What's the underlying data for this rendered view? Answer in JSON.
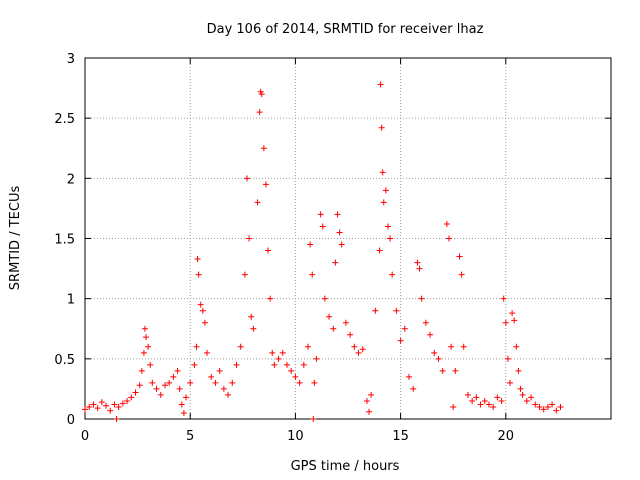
{
  "chart_data": {
    "type": "scatter",
    "title": "Day 106 of 2014, SRMTID for receiver lhaz",
    "xlabel": "GPS time / hours",
    "ylabel": "SRMTID / TECUs",
    "xlim": [
      0,
      25
    ],
    "ylim": [
      0,
      3
    ],
    "xticks": [
      0,
      5,
      10,
      15,
      20
    ],
    "xtick_labels": [
      "0",
      "5",
      "10",
      "15",
      "20"
    ],
    "yticks": [
      0,
      0.5,
      1,
      1.5,
      2,
      2.5,
      3
    ],
    "ytick_labels": [
      "0",
      "0.5",
      "1",
      "1.5",
      "2",
      "2.5",
      "3"
    ],
    "grid": true,
    "marker": "+",
    "color": "#ff0000",
    "series": [
      {
        "name": "SRMTID",
        "points": [
          [
            0.0,
            0.08
          ],
          [
            0.2,
            0.1
          ],
          [
            0.4,
            0.12
          ],
          [
            0.6,
            0.09
          ],
          [
            0.8,
            0.14
          ],
          [
            1.0,
            0.11
          ],
          [
            1.2,
            0.07
          ],
          [
            1.4,
            0.12
          ],
          [
            1.5,
            0.0
          ],
          [
            1.6,
            0.1
          ],
          [
            1.8,
            0.13
          ],
          [
            2.0,
            0.15
          ],
          [
            2.2,
            0.18
          ],
          [
            2.4,
            0.22
          ],
          [
            2.6,
            0.28
          ],
          [
            2.7,
            0.4
          ],
          [
            2.8,
            0.55
          ],
          [
            2.85,
            0.75
          ],
          [
            2.9,
            0.68
          ],
          [
            3.0,
            0.6
          ],
          [
            3.1,
            0.45
          ],
          [
            3.2,
            0.3
          ],
          [
            3.4,
            0.25
          ],
          [
            3.6,
            0.2
          ],
          [
            3.8,
            0.28
          ],
          [
            4.0,
            0.3
          ],
          [
            4.2,
            0.35
          ],
          [
            4.4,
            0.4
          ],
          [
            4.5,
            0.25
          ],
          [
            4.6,
            0.12
          ],
          [
            4.7,
            0.05
          ],
          [
            4.8,
            0.18
          ],
          [
            5.0,
            0.3
          ],
          [
            5.2,
            0.45
          ],
          [
            5.3,
            0.6
          ],
          [
            5.35,
            1.33
          ],
          [
            5.4,
            1.2
          ],
          [
            5.5,
            0.95
          ],
          [
            5.6,
            0.9
          ],
          [
            5.7,
            0.8
          ],
          [
            5.8,
            0.55
          ],
          [
            6.0,
            0.35
          ],
          [
            6.2,
            0.3
          ],
          [
            6.4,
            0.4
          ],
          [
            6.6,
            0.25
          ],
          [
            6.8,
            0.2
          ],
          [
            7.0,
            0.3
          ],
          [
            7.2,
            0.45
          ],
          [
            7.4,
            0.6
          ],
          [
            7.6,
            1.2
          ],
          [
            7.7,
            2.0
          ],
          [
            7.8,
            1.5
          ],
          [
            7.9,
            0.85
          ],
          [
            8.0,
            0.75
          ],
          [
            8.2,
            1.8
          ],
          [
            8.3,
            2.55
          ],
          [
            8.35,
            2.72
          ],
          [
            8.4,
            2.7
          ],
          [
            8.5,
            2.25
          ],
          [
            8.6,
            1.95
          ],
          [
            8.7,
            1.4
          ],
          [
            8.8,
            1.0
          ],
          [
            8.9,
            0.55
          ],
          [
            9.0,
            0.45
          ],
          [
            9.2,
            0.5
          ],
          [
            9.4,
            0.55
          ],
          [
            9.6,
            0.45
          ],
          [
            9.8,
            0.4
          ],
          [
            10.0,
            0.35
          ],
          [
            10.2,
            0.3
          ],
          [
            10.4,
            0.45
          ],
          [
            10.6,
            0.6
          ],
          [
            10.7,
            1.45
          ],
          [
            10.8,
            1.2
          ],
          [
            10.85,
            0.0
          ],
          [
            10.9,
            0.3
          ],
          [
            11.0,
            0.5
          ],
          [
            11.2,
            1.7
          ],
          [
            11.3,
            1.6
          ],
          [
            11.4,
            1.0
          ],
          [
            11.6,
            0.85
          ],
          [
            11.8,
            0.75
          ],
          [
            11.9,
            1.3
          ],
          [
            12.0,
            1.7
          ],
          [
            12.1,
            1.55
          ],
          [
            12.2,
            1.45
          ],
          [
            12.4,
            0.8
          ],
          [
            12.6,
            0.7
          ],
          [
            12.8,
            0.6
          ],
          [
            13.0,
            0.55
          ],
          [
            13.2,
            0.58
          ],
          [
            13.4,
            0.15
          ],
          [
            13.5,
            0.06
          ],
          [
            13.6,
            0.2
          ],
          [
            13.8,
            0.9
          ],
          [
            14.0,
            1.4
          ],
          [
            14.05,
            2.78
          ],
          [
            14.1,
            2.42
          ],
          [
            14.15,
            2.05
          ],
          [
            14.2,
            1.8
          ],
          [
            14.3,
            1.9
          ],
          [
            14.4,
            1.6
          ],
          [
            14.5,
            1.5
          ],
          [
            14.6,
            1.2
          ],
          [
            14.8,
            0.9
          ],
          [
            15.0,
            0.65
          ],
          [
            15.2,
            0.75
          ],
          [
            15.4,
            0.35
          ],
          [
            15.6,
            0.25
          ],
          [
            15.8,
            1.3
          ],
          [
            15.9,
            1.25
          ],
          [
            16.0,
            1.0
          ],
          [
            16.2,
            0.8
          ],
          [
            16.4,
            0.7
          ],
          [
            16.6,
            0.55
          ],
          [
            16.8,
            0.5
          ],
          [
            17.0,
            0.4
          ],
          [
            17.2,
            1.62
          ],
          [
            17.3,
            1.5
          ],
          [
            17.4,
            0.6
          ],
          [
            17.5,
            0.1
          ],
          [
            17.6,
            0.4
          ],
          [
            17.8,
            1.35
          ],
          [
            17.9,
            1.2
          ],
          [
            18.0,
            0.6
          ],
          [
            18.2,
            0.2
          ],
          [
            18.4,
            0.15
          ],
          [
            18.6,
            0.18
          ],
          [
            18.8,
            0.12
          ],
          [
            19.0,
            0.15
          ],
          [
            19.2,
            0.12
          ],
          [
            19.4,
            0.1
          ],
          [
            19.6,
            0.18
          ],
          [
            19.8,
            0.15
          ],
          [
            19.9,
            1.0
          ],
          [
            20.0,
            0.8
          ],
          [
            20.1,
            0.5
          ],
          [
            20.2,
            0.3
          ],
          [
            20.3,
            0.88
          ],
          [
            20.4,
            0.82
          ],
          [
            20.5,
            0.6
          ],
          [
            20.6,
            0.4
          ],
          [
            20.7,
            0.25
          ],
          [
            20.8,
            0.2
          ],
          [
            21.0,
            0.15
          ],
          [
            21.2,
            0.18
          ],
          [
            21.4,
            0.12
          ],
          [
            21.6,
            0.1
          ],
          [
            21.8,
            0.08
          ],
          [
            22.0,
            0.1
          ],
          [
            22.2,
            0.12
          ],
          [
            22.4,
            0.07
          ],
          [
            22.6,
            0.1
          ]
        ]
      }
    ]
  }
}
